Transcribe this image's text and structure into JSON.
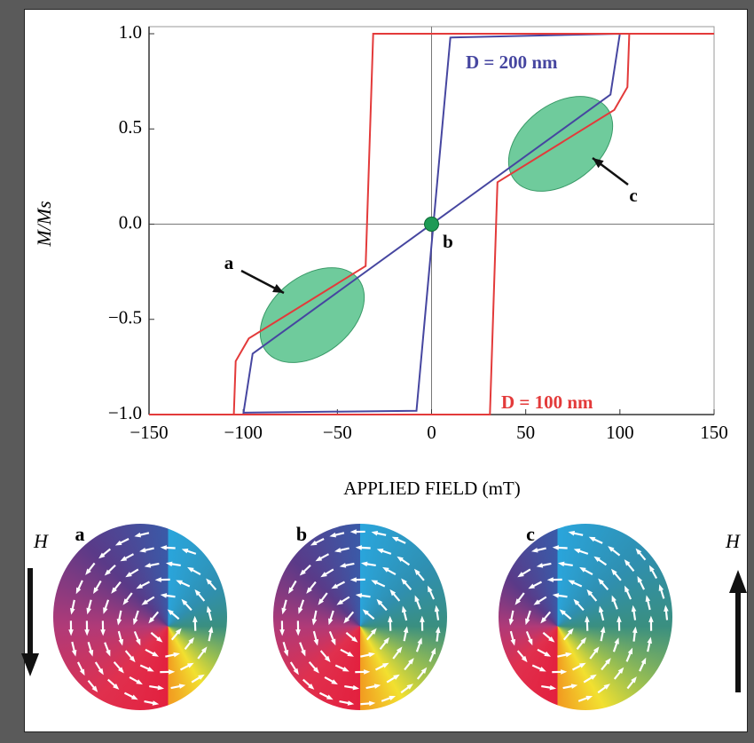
{
  "chart_data": {
    "type": "line",
    "x_label": "APPLIED FIELD (mT)",
    "y_label": "M/Ms",
    "xlim": [
      -150,
      150
    ],
    "ylim": [
      -1.0,
      1.0
    ],
    "xticks": [
      {
        "value": -150,
        "label": "−150"
      },
      {
        "value": -100,
        "label": "−100"
      },
      {
        "value": -50,
        "label": "−50"
      },
      0,
      50,
      100,
      150
    ],
    "yticks": [
      {
        "value": -1.0,
        "label": "−1.0"
      },
      {
        "value": -0.5,
        "label": "−0.5"
      },
      {
        "value": 0,
        "label": "0.0"
      },
      0.5,
      {
        "value": 1.0,
        "label": "1.0"
      }
    ],
    "zero_lines": true,
    "series": [
      {
        "name": "D = 200 nm",
        "color": "#4646a0",
        "x": [
          -100,
          -95,
          0,
          95,
          100,
          150,
          null,
          -100,
          -8,
          10,
          100
        ],
        "values": [
          -1.0,
          -0.68,
          0,
          0.68,
          1.0,
          1.0,
          null,
          -0.99,
          -0.98,
          0.98,
          1.0
        ]
      },
      {
        "name": "D = 100 nm",
        "color": "#e33a3a",
        "x": [
          -150,
          -105,
          -104,
          -97,
          -35,
          -31,
          150,
          null,
          150,
          105,
          104,
          97,
          35,
          31,
          -150
        ],
        "values": [
          -1.0,
          -1.0,
          -0.72,
          -0.6,
          -0.22,
          1.0,
          1.0,
          null,
          1.0,
          1.0,
          0.72,
          0.6,
          0.22,
          -1.0,
          -1.0
        ]
      }
    ],
    "annotations": [
      "a",
      "b",
      "c"
    ]
  },
  "panels": {
    "labels": [
      "a",
      "b",
      "c"
    ],
    "field_labels": [
      "H",
      "H"
    ]
  }
}
